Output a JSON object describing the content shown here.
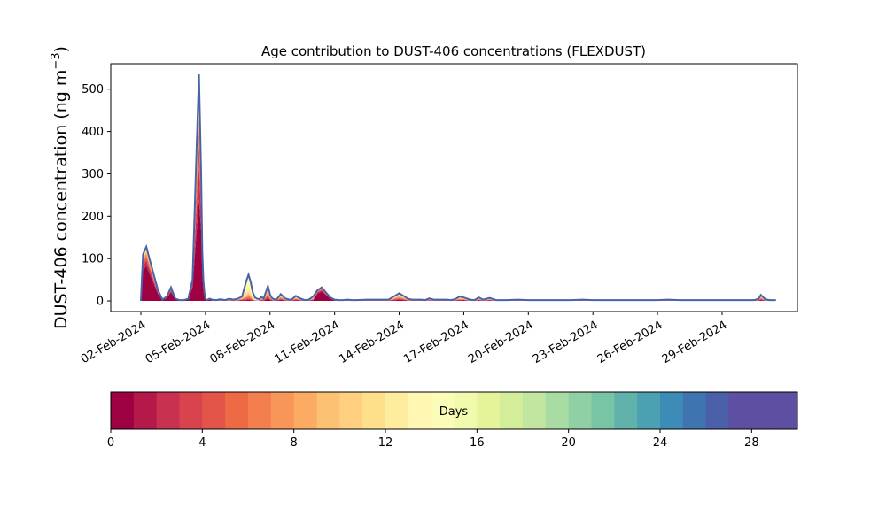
{
  "chart_data": {
    "type": "area",
    "title": "Age contribution to DUST-406 concentrations (FLEXDUST)",
    "ylabel": "DUST-406 concentration (ng m",
    "ylabel_sup": "−3",
    "ylabel_close": ")",
    "xlabel": "",
    "ylim": [
      -25,
      560
    ],
    "yticks": [
      0,
      100,
      200,
      300,
      400,
      500
    ],
    "x_tick_labels": [
      "02-Feb-2024",
      "05-Feb-2024",
      "08-Feb-2024",
      "11-Feb-2024",
      "14-Feb-2024",
      "17-Feb-2024",
      "20-Feb-2024",
      "23-Feb-2024",
      "26-Feb-2024",
      "29-Feb-2024"
    ],
    "xlim_days": [
      -0.4,
      31.5
    ],
    "grid": false,
    "total_series": {
      "name": "",
      "x_days": [
        1.0,
        1.1,
        1.25,
        1.5,
        1.8,
        2.0,
        2.2,
        2.4,
        2.5,
        2.6,
        2.8,
        3.0,
        3.2,
        3.4,
        3.6,
        3.7,
        3.8,
        3.85,
        3.9,
        3.95,
        4.0,
        4.05,
        4.1,
        4.2,
        4.3,
        4.5,
        4.7,
        4.9,
        5.1,
        5.3,
        5.5,
        5.7,
        5.9,
        6.0,
        6.1,
        6.2,
        6.3,
        6.4,
        6.5,
        6.6,
        6.7,
        6.9,
        7.0,
        7.1,
        7.2,
        7.3,
        7.5,
        7.7,
        7.9,
        8.0,
        8.2,
        8.4,
        8.6,
        8.8,
        9.0,
        9.2,
        9.4,
        9.6,
        9.8,
        10.0,
        10.2,
        10.4,
        10.6,
        10.8,
        11.0,
        11.5,
        12.0,
        12.5,
        12.8,
        13.0,
        13.2,
        13.4,
        13.6,
        14.0,
        14.2,
        14.4,
        14.6,
        15.0,
        15.2,
        15.4,
        15.6,
        15.8,
        16.0,
        16.3,
        16.5,
        16.7,
        16.9,
        17.2,
        17.5,
        17.8,
        18.0,
        18.5,
        19.0,
        19.5,
        20.0,
        21.0,
        21.5,
        22.0,
        23.0,
        24.0,
        25.0,
        25.5,
        26.0,
        27.0,
        28.0,
        29.0,
        29.5,
        29.7,
        29.8,
        30.0,
        30.2,
        30.5
      ],
      "values": [
        0,
        110,
        128,
        80,
        25,
        3,
        10,
        32,
        18,
        5,
        2,
        2,
        5,
        50,
        380,
        535,
        300,
        120,
        50,
        20,
        5,
        2,
        3,
        5,
        3,
        2,
        4,
        2,
        5,
        3,
        5,
        10,
        48,
        62,
        45,
        20,
        8,
        5,
        4,
        10,
        5,
        35,
        15,
        6,
        4,
        3,
        16,
        6,
        3,
        3,
        12,
        6,
        2,
        3,
        10,
        25,
        32,
        20,
        8,
        3,
        2,
        2,
        3,
        2,
        2,
        3,
        3,
        3,
        12,
        18,
        12,
        5,
        3,
        3,
        2,
        6,
        3,
        3,
        3,
        2,
        4,
        10,
        8,
        3,
        2,
        8,
        3,
        7,
        2,
        2,
        2,
        3,
        2,
        2,
        2,
        2,
        3,
        2,
        2,
        2,
        2,
        3,
        2,
        2,
        2,
        2,
        2,
        5,
        14,
        4,
        2,
        2
      ]
    },
    "colorbar": {
      "label": "Days",
      "ticks": [
        0,
        4,
        8,
        12,
        16,
        20,
        24,
        28
      ],
      "range": [
        0,
        30
      ],
      "bins": 30
    },
    "colors": [
      "#9e0142",
      "#b4194a",
      "#c93151",
      "#d8434e",
      "#e35549",
      "#ee6a44",
      "#f47e4e",
      "#f89558",
      "#fbac62",
      "#fdc173",
      "#fed080",
      "#fee08b",
      "#feec9f",
      "#fff7b2",
      "#fbfcb7",
      "#f2faae",
      "#e5f49b",
      "#d4ed9b",
      "#c1e6a0",
      "#a9dca3",
      "#90d0a4",
      "#78c5a5",
      "#61b2ab",
      "#4ba0b1",
      "#3d8cb8",
      "#3f74b1",
      "#4c5fa9",
      "#5e4fa2",
      "#5e4fa2",
      "#5e4fa2"
    ],
    "line_color": "#4a63a8"
  }
}
